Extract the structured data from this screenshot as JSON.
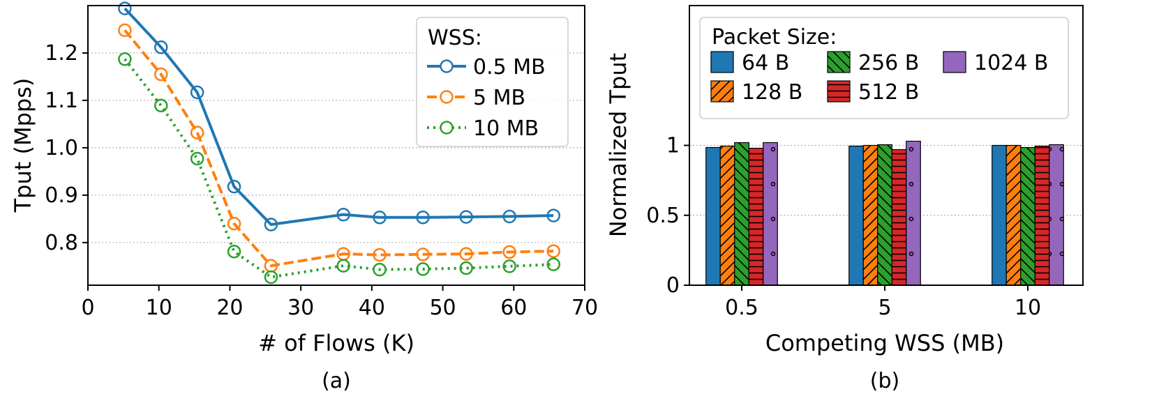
{
  "chart_data": [
    {
      "type": "line",
      "caption": "(a)",
      "xlabel": "# of Flows (K)",
      "ylabel": "Tput (Mpps)",
      "xlim": [
        0,
        70
      ],
      "ylim": [
        0.71,
        1.3
      ],
      "xticks": [
        "0",
        "10",
        "20",
        "30",
        "40",
        "50",
        "60",
        "70"
      ],
      "yticks": [
        "0.8",
        "0.9",
        "1.0",
        "1.1",
        "1.2"
      ],
      "grid": "horizontal dotted",
      "legend": {
        "title": "WSS:",
        "position": "top-right"
      },
      "x": [
        5.2,
        10.3,
        15.4,
        20.6,
        25.8,
        36,
        41.1,
        47.2,
        53.3,
        59.4,
        65.6
      ],
      "series": [
        {
          "name": "0.5 MB",
          "color": "#1f77b4",
          "linestyle": "solid",
          "values": [
            1.294,
            1.212,
            1.117,
            0.918,
            0.838,
            0.859,
            0.853,
            0.853,
            0.854,
            0.855,
            0.857
          ]
        },
        {
          "name": "5 MB",
          "color": "#ff7f0e",
          "linestyle": "dashed",
          "values": [
            1.248,
            1.155,
            1.032,
            0.84,
            0.751,
            0.776,
            0.774,
            0.775,
            0.776,
            0.78,
            0.782
          ]
        },
        {
          "name": "10 MB",
          "color": "#2ca02c",
          "linestyle": "dotted",
          "values": [
            1.187,
            1.089,
            0.977,
            0.781,
            0.727,
            0.751,
            0.743,
            0.744,
            0.746,
            0.75,
            0.754
          ]
        }
      ]
    },
    {
      "type": "bar",
      "caption": "(b)",
      "xlabel": "Competing WSS (MB)",
      "ylabel": "Normalized Tput",
      "ylim": [
        0,
        2.0
      ],
      "yticks": [
        "0",
        "0.5",
        "1"
      ],
      "grid": "horizontal dotted",
      "categories": [
        "0.5",
        "5",
        "10"
      ],
      "legend": {
        "title": "Packet Size:",
        "position": "top"
      },
      "series": [
        {
          "name": "64 B",
          "color": "#1f77b4",
          "hatch": "none",
          "values": [
            0.985,
            0.995,
            1.0
          ]
        },
        {
          "name": "128 B",
          "color": "#ff7f0e",
          "hatch": "forward-diagonal",
          "values": [
            0.995,
            1.0,
            1.0
          ]
        },
        {
          "name": "256 B",
          "color": "#2ca02c",
          "hatch": "back-diagonal",
          "values": [
            1.02,
            1.005,
            0.985
          ]
        },
        {
          "name": "512 B",
          "color": "#d62728",
          "hatch": "horizontal",
          "values": [
            0.98,
            0.97,
            0.995
          ]
        },
        {
          "name": "1024 B",
          "color": "#9467bd",
          "hatch": "circles",
          "values": [
            1.02,
            1.03,
            1.005
          ]
        }
      ]
    }
  ]
}
